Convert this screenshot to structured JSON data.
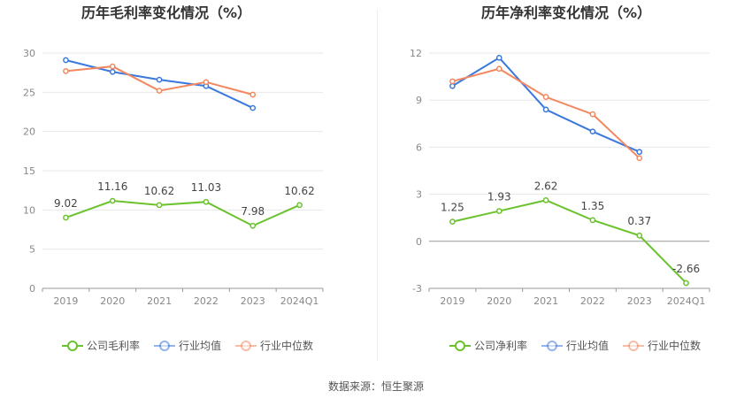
{
  "source_text": "数据来源：恒生聚源",
  "colors": {
    "company": "#6ac22d",
    "industry_avg": "#3b78dd",
    "industry_median": "#f2885f",
    "grid": "#e8e8e8",
    "axis": "#999999",
    "tick_text": "#888888",
    "title_text": "#333333",
    "label_text": "#444444"
  },
  "chart_data": [
    {
      "type": "line",
      "title": "历年毛利率变化情况（%）",
      "categories": [
        "2019",
        "2020",
        "2021",
        "2022",
        "2023",
        "2024Q1"
      ],
      "ylim": [
        0,
        30
      ],
      "yticks": [
        0,
        5,
        10,
        15,
        20,
        25,
        30
      ],
      "grid": true,
      "legend_position": "bottom",
      "series": [
        {
          "name": "公司毛利率",
          "key": "company",
          "values": [
            9.02,
            11.16,
            10.62,
            11.03,
            7.98,
            10.62
          ],
          "labels": [
            "9.02",
            "11.16",
            "10.62",
            "11.03",
            "7.98",
            "10.62"
          ]
        },
        {
          "name": "行业均值",
          "key": "industry_avg",
          "values": [
            29.1,
            27.6,
            26.6,
            25.8,
            23.0,
            null
          ]
        },
        {
          "name": "行业中位数",
          "key": "industry_median",
          "values": [
            27.7,
            28.3,
            25.2,
            26.3,
            24.7,
            null
          ]
        }
      ]
    },
    {
      "type": "line",
      "title": "历年净利率变化情况（%）",
      "categories": [
        "2019",
        "2020",
        "2021",
        "2022",
        "2023",
        "2024Q1"
      ],
      "ylim": [
        -3,
        12
      ],
      "yticks": [
        -3,
        0,
        3,
        6,
        9,
        12
      ],
      "grid": true,
      "legend_position": "bottom",
      "series": [
        {
          "name": "公司净利率",
          "key": "company",
          "values": [
            1.25,
            1.93,
            2.62,
            1.35,
            0.37,
            -2.66
          ],
          "labels": [
            "1.25",
            "1.93",
            "2.62",
            "1.35",
            "0.37",
            "-2.66"
          ]
        },
        {
          "name": "行业均值",
          "key": "industry_avg",
          "values": [
            9.9,
            11.7,
            8.4,
            7.0,
            5.7,
            null
          ]
        },
        {
          "name": "行业中位数",
          "key": "industry_median",
          "values": [
            10.2,
            11.0,
            9.2,
            8.1,
            5.3,
            null
          ]
        }
      ]
    }
  ]
}
